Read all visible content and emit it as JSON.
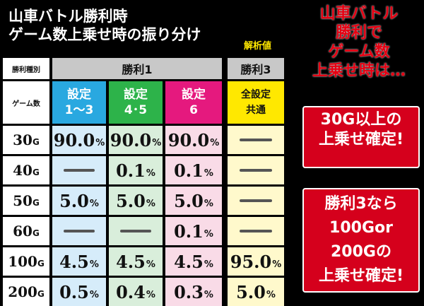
{
  "header": {
    "title": [
      "山車バトル勝利時",
      "ゲーム数上乗せ時の振り分け"
    ],
    "tag": "解析値"
  },
  "table": {
    "corner": [
      "勝利種別",
      "ゲーム数"
    ],
    "groups": [
      "勝利1",
      "勝利3"
    ],
    "columns": [
      [
        "設定",
        "1〜3"
      ],
      [
        "設定",
        "4･5"
      ],
      [
        "設定",
        "6"
      ],
      [
        "全設定",
        "共通"
      ]
    ],
    "rows": [
      {
        "games": "30",
        "unit": "G",
        "cells": [
          {
            "value": "90.0",
            "unit": "%"
          },
          {
            "value": "90.0",
            "unit": "%"
          },
          {
            "value": "90.0",
            "unit": "%"
          },
          null
        ]
      },
      {
        "games": "40",
        "unit": "G",
        "cells": [
          null,
          {
            "value": "0.1",
            "unit": "%"
          },
          {
            "value": "0.1",
            "unit": "%"
          },
          null
        ]
      },
      {
        "games": "50",
        "unit": "G",
        "cells": [
          {
            "value": "5.0",
            "unit": "%"
          },
          {
            "value": "5.0",
            "unit": "%"
          },
          {
            "value": "5.0",
            "unit": "%"
          },
          null
        ]
      },
      {
        "games": "60",
        "unit": "G",
        "cells": [
          null,
          null,
          {
            "value": "0.1",
            "unit": "%"
          },
          null
        ]
      },
      {
        "games": "100",
        "unit": "G",
        "cells": [
          {
            "value": "4.5",
            "unit": "%"
          },
          {
            "value": "4.5",
            "unit": "%"
          },
          {
            "value": "4.5",
            "unit": "%"
          },
          {
            "value": "95.0",
            "unit": "%"
          }
        ]
      },
      {
        "games": "200",
        "unit": "G",
        "cells": [
          {
            "value": "0.5",
            "unit": "%"
          },
          {
            "value": "0.4",
            "unit": "%"
          },
          {
            "value": "0.3",
            "unit": "%"
          },
          {
            "value": "5.0",
            "unit": "%"
          }
        ]
      }
    ]
  },
  "side": {
    "lead": [
      "山車バトル",
      "勝利で",
      "ゲーム数",
      "上乗せ時は…"
    ],
    "box1": [
      "30G以上の",
      "上乗せ確定!"
    ],
    "box2": [
      "勝利3なら",
      "100Gor",
      "200Gの",
      "上乗せ確定!"
    ]
  }
}
